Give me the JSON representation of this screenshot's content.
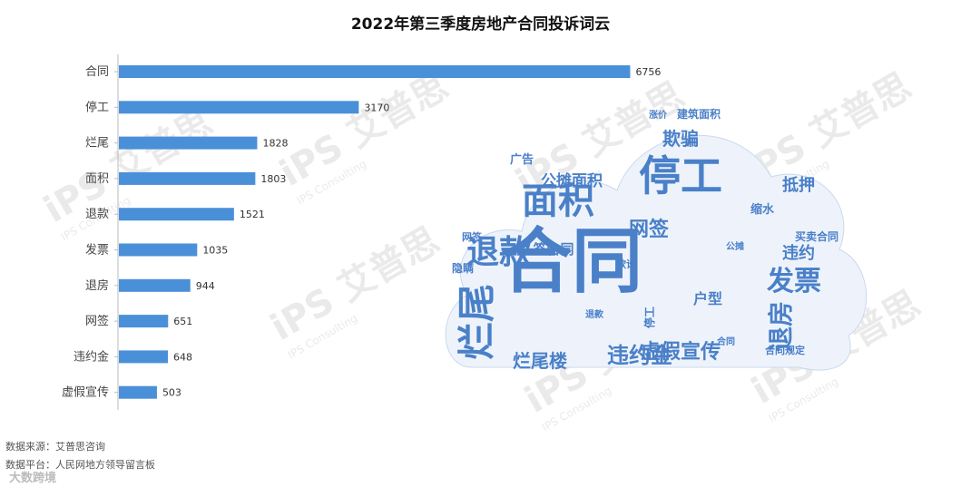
{
  "title": "2022年第三季度房地产合同投诉词云",
  "footer": {
    "source1": "数据来源：艾普思咨询",
    "source2": "数据平台：人民网地方领导留言板",
    "logo_text": "大数跨境"
  },
  "watermark": {
    "brand": "iPS 艾普思",
    "sub": "IPS Consulting"
  },
  "chart_data": {
    "type": "bar",
    "orientation": "horizontal",
    "categories": [
      "合同",
      "停工",
      "烂尾",
      "面积",
      "退款",
      "发票",
      "退房",
      "网签",
      "违约金",
      "虚假宣传"
    ],
    "values": [
      6756,
      3170,
      1828,
      1803,
      1521,
      1035,
      944,
      651,
      648,
      503
    ],
    "value_labels": [
      "6756",
      "3170",
      "1828",
      "1803",
      "1521",
      "1035",
      "944",
      "651",
      "648",
      "503"
    ],
    "xlim": [
      0,
      7000
    ],
    "bar_color": "#4a90d9",
    "grid": false
  },
  "wordcloud": {
    "color": "#4a80c8",
    "words": [
      {
        "text": "合同",
        "size": 78
      },
      {
        "text": "停工",
        "size": 46
      },
      {
        "text": "烂尾",
        "size": 42
      },
      {
        "text": "面积",
        "size": 40
      },
      {
        "text": "退款",
        "size": 36
      },
      {
        "text": "发票",
        "size": 30
      },
      {
        "text": "退房",
        "size": 28
      },
      {
        "text": "违约金",
        "size": 24
      },
      {
        "text": "虚假宣传",
        "size": 22
      },
      {
        "text": "烂尾楼",
        "size": 20
      },
      {
        "text": "网签",
        "size": 22
      },
      {
        "text": "欺骗",
        "size": 20
      },
      {
        "text": "抵押",
        "size": 18
      },
      {
        "text": "公摊面积",
        "size": 17
      },
      {
        "text": "签合同",
        "size": 15
      },
      {
        "text": "违约",
        "size": 18
      },
      {
        "text": "户型",
        "size": 16
      },
      {
        "text": "广告",
        "size": 13
      },
      {
        "text": "建筑面积",
        "size": 12
      },
      {
        "text": "买卖合同",
        "size": 12
      },
      {
        "text": "合同规定",
        "size": 11
      },
      {
        "text": "缩水",
        "size": 13
      },
      {
        "text": "停工",
        "size": 12
      },
      {
        "text": "隐瞒",
        "size": 12
      },
      {
        "text": "欺诈",
        "size": 11
      },
      {
        "text": "网签",
        "size": 11
      },
      {
        "text": "涨价",
        "size": 10
      },
      {
        "text": "公摊",
        "size": 10
      },
      {
        "text": "退款",
        "size": 10
      },
      {
        "text": "合同",
        "size": 10
      }
    ]
  }
}
